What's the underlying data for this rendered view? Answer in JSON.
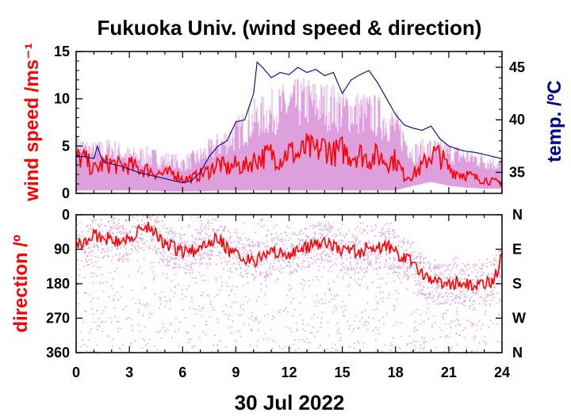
{
  "chart_data": [
    {
      "type": "line",
      "title": "Fukuoka Univ. (wind speed & direction)",
      "ylabel": "wind speed /ms⁻¹",
      "y2label": "temp. /ºC",
      "xlim": [
        0,
        24
      ],
      "ylim": [
        0,
        15
      ],
      "y2lim": [
        33,
        46.5
      ],
      "yticks": [
        0,
        5,
        10,
        15
      ],
      "y2ticks": [
        35,
        40,
        45
      ],
      "xticks": [
        0,
        3,
        6,
        9,
        12,
        15,
        18,
        21,
        24
      ],
      "grid": false,
      "series": [
        {
          "name": "",
          "role": "gust range (light)",
          "color": "#dda0dd",
          "x": [
            0,
            1,
            2,
            3,
            4,
            5,
            6,
            7,
            8,
            9,
            10,
            11,
            12,
            13,
            14,
            15,
            16,
            17,
            18,
            19,
            20,
            21,
            22,
            23,
            24
          ],
          "low": [
            0.3,
            0.3,
            0.3,
            0.3,
            0.3,
            0.2,
            0.2,
            0.2,
            0.3,
            0.3,
            0.3,
            0.3,
            0.3,
            0.3,
            0.3,
            0.3,
            0.3,
            0.3,
            0.3,
            0.8,
            1.2,
            0.8,
            0.6,
            0.5,
            0.5
          ],
          "high": [
            6.5,
            5.5,
            6.0,
            5.0,
            5.0,
            4.5,
            4.0,
            5.0,
            6.5,
            8.0,
            10.0,
            11.0,
            12.0,
            12.5,
            12.0,
            11.5,
            11.0,
            10.5,
            9.0,
            5.5,
            6.0,
            5.5,
            5.0,
            4.5,
            4.0
          ]
        },
        {
          "name": "",
          "role": "mean wind speed",
          "color": "#ff0000",
          "x": [
            0,
            0.5,
            1,
            1.5,
            2,
            2.5,
            3,
            3.5,
            4,
            4.5,
            5,
            5.5,
            6,
            6.5,
            7,
            7.5,
            8,
            8.5,
            9,
            9.5,
            10,
            10.5,
            11,
            11.5,
            12,
            12.5,
            13,
            13.5,
            14,
            14.5,
            15,
            15.5,
            16,
            16.5,
            17,
            17.5,
            18,
            18.5,
            19,
            19.5,
            20,
            20.5,
            21,
            21.5,
            22,
            22.5,
            23,
            23.5,
            24
          ],
          "y": [
            3.8,
            3.6,
            2.5,
            3.0,
            3.2,
            2.8,
            3.0,
            2.6,
            2.5,
            2.2,
            2.0,
            2.2,
            1.5,
            1.6,
            2.0,
            2.4,
            3.2,
            2.6,
            3.0,
            2.8,
            3.5,
            3.8,
            4.2,
            3.6,
            4.5,
            4.0,
            4.8,
            4.4,
            5.0,
            4.2,
            4.6,
            4.0,
            4.2,
            3.6,
            4.0,
            3.4,
            3.6,
            1.8,
            2.0,
            2.8,
            4.2,
            4.0,
            2.6,
            2.2,
            2.0,
            1.6,
            1.5,
            1.2,
            1.2
          ]
        },
        {
          "name": "",
          "role": "temperature (right axis)",
          "color": "#00008b",
          "x": [
            0,
            0.5,
            1,
            1.2,
            1.5,
            2,
            2.5,
            3,
            3.5,
            4,
            4.5,
            5,
            5.5,
            6,
            6.5,
            7,
            7.5,
            8,
            8.5,
            9,
            9.5,
            10,
            10.2,
            10.5,
            11,
            11.5,
            12,
            12.5,
            13,
            13.5,
            14,
            14.5,
            15,
            15.5,
            16,
            16.5,
            17,
            17.5,
            18,
            18.5,
            19,
            19.5,
            20,
            20.5,
            21,
            21.5,
            22,
            22.5,
            23,
            23.5,
            24
          ],
          "y": [
            36.5,
            36.5,
            36.3,
            37.5,
            36.0,
            35.8,
            35.6,
            35.3,
            35.0,
            34.8,
            34.6,
            34.4,
            34.2,
            34.0,
            34.2,
            35.0,
            36.5,
            37.5,
            38.0,
            39.8,
            40.0,
            42.5,
            45.5,
            45.0,
            44.0,
            44.5,
            44.3,
            45.0,
            44.5,
            44.8,
            44.2,
            44.5,
            42.5,
            43.8,
            44.3,
            44.7,
            43.5,
            42.0,
            40.5,
            39.5,
            39.2,
            39.0,
            39.4,
            38.2,
            37.5,
            37.2,
            37.0,
            36.9,
            36.7,
            36.5,
            36.3
          ]
        }
      ]
    },
    {
      "type": "scatter",
      "ylabel": "direction /º",
      "xlabel": "30 Jul 2022",
      "xlim": [
        0,
        24
      ],
      "ylim": [
        360,
        0
      ],
      "yticks": [
        0,
        90,
        180,
        270,
        360
      ],
      "y2ticklabels": [
        "N",
        "E",
        "S",
        "W",
        "N"
      ],
      "xticks": [
        0,
        3,
        6,
        9,
        12,
        15,
        18,
        21,
        24
      ],
      "grid": false,
      "series": [
        {
          "name": "",
          "role": "instantaneous direction (light)",
          "color": "#dda0dd",
          "x": [
            0,
            1,
            2,
            3,
            4,
            5,
            6,
            7,
            8,
            9,
            10,
            11,
            12,
            13,
            14,
            15,
            16,
            17,
            18,
            19,
            20,
            21,
            22,
            23,
            24
          ],
          "spread_low": [
            0,
            0,
            0,
            0,
            0,
            0,
            0,
            0,
            0,
            0,
            0,
            20,
            30,
            20,
            20,
            20,
            20,
            20,
            20,
            100,
            110,
            110,
            110,
            110,
            110
          ],
          "spread_high": [
            360,
            360,
            360,
            360,
            360,
            360,
            360,
            360,
            360,
            360,
            360,
            360,
            360,
            360,
            360,
            360,
            360,
            360,
            360,
            360,
            360,
            360,
            360,
            360,
            360
          ]
        },
        {
          "name": "",
          "role": "mean direction",
          "color": "#ff0000",
          "x": [
            0,
            0.5,
            1,
            1.5,
            2,
            2.5,
            3,
            3.5,
            4,
            4.5,
            5,
            5.5,
            6,
            6.5,
            7,
            7.5,
            8,
            8.5,
            9,
            9.5,
            10,
            10.5,
            11,
            11.5,
            12,
            12.5,
            13,
            13.5,
            14,
            14.5,
            15,
            15.5,
            16,
            16.5,
            17,
            17.5,
            18,
            18.5,
            19,
            19.5,
            20,
            20.5,
            21,
            21.5,
            22,
            22.5,
            23,
            23.5,
            24
          ],
          "y": [
            70,
            75,
            55,
            60,
            65,
            70,
            55,
            45,
            30,
            50,
            75,
            85,
            100,
            95,
            85,
            70,
            55,
            90,
            100,
            115,
            120,
            110,
            100,
            95,
            100,
            95,
            85,
            75,
            70,
            80,
            95,
            90,
            100,
            85,
            90,
            80,
            100,
            110,
            125,
            160,
            175,
            178,
            180,
            175,
            185,
            178,
            180,
            175,
            110
          ]
        }
      ]
    }
  ],
  "colors": {
    "speed": "#ff0000",
    "speed_range": "#dda0dd",
    "temperature": "#00008b",
    "text": "#000000"
  }
}
